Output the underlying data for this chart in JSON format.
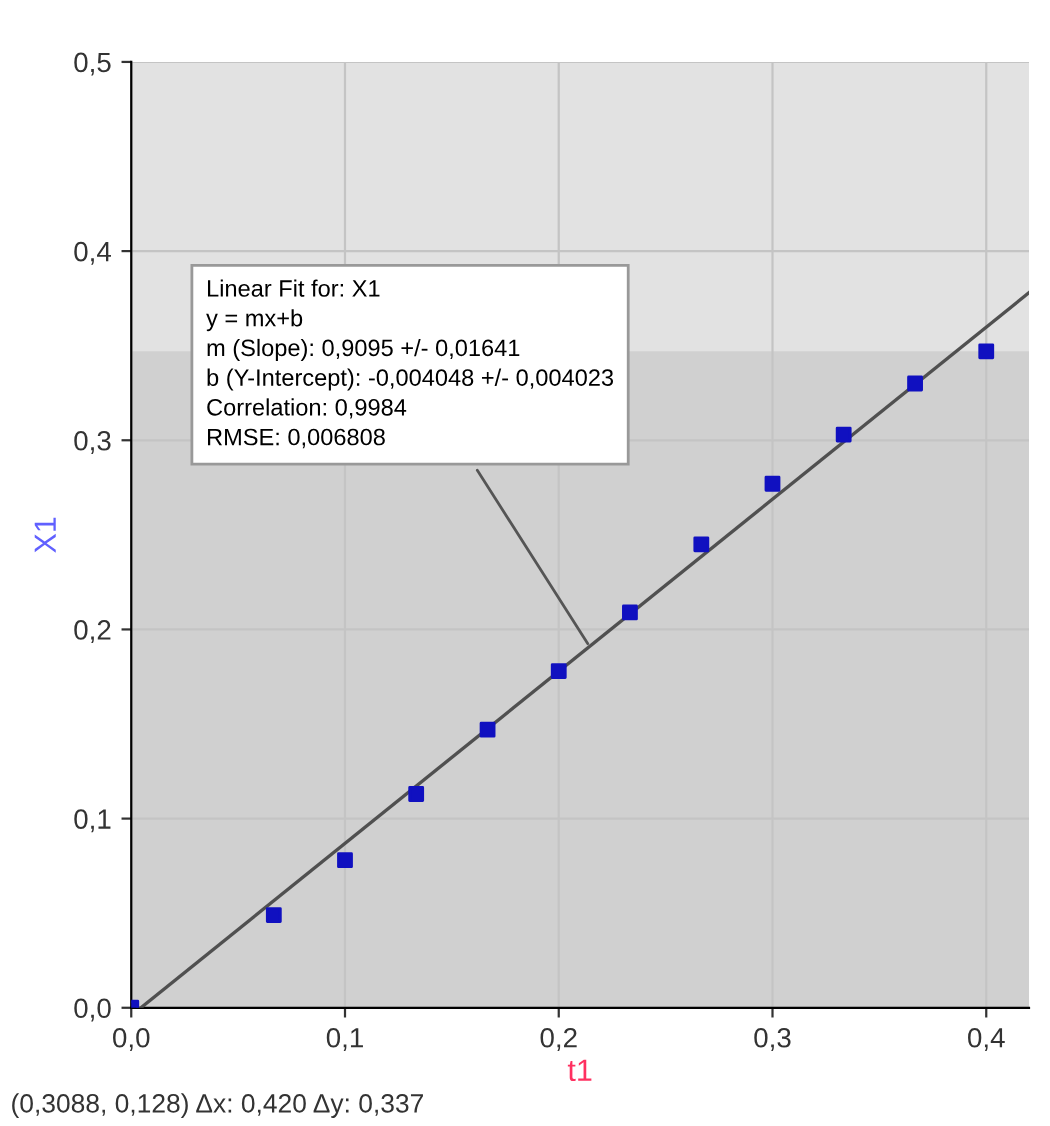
{
  "chart_data": {
    "type": "scatter",
    "xlabel": "t1",
    "ylabel": "X1",
    "series": [
      {
        "color": "#1010c0",
        "marker": "square",
        "x": [
          0,
          0.0667,
          0.1,
          0.1333,
          0.1667,
          0.2,
          0.2333,
          0.2667,
          0.3,
          0.3333,
          0.3667,
          0.4
        ],
        "values": [
          0,
          0.049,
          0.078,
          0.113,
          0.147,
          0.178,
          0.209,
          0.245,
          0.277,
          0.303,
          0.33,
          0.347
        ]
      },
      {
        "type": "line",
        "color": "#505050",
        "marker": "none",
        "x": [
          0.0045,
          0.42
        ],
        "values": [
          0,
          0.378
        ]
      }
    ],
    "xlim": [
      0,
      0.42
    ],
    "ylim": [
      0,
      0.5
    ],
    "xticks": [
      {
        "value": 0,
        "label": "0,0"
      },
      {
        "value": 0.1,
        "label": "0,1"
      },
      {
        "value": 0.2,
        "label": "0,2"
      },
      {
        "value": 0.3,
        "label": "0,3"
      },
      {
        "value": 0.4,
        "label": "0,4"
      }
    ],
    "yticks": [
      {
        "value": 0,
        "label": "0,0"
      },
      {
        "value": 0.1,
        "label": "0,1"
      },
      {
        "value": 0.2,
        "label": "0,2"
      },
      {
        "value": 0.3,
        "label": "0,3"
      },
      {
        "value": 0.4,
        "label": "0,4"
      },
      {
        "value": 0.5,
        "label": "0,5"
      }
    ],
    "bands": [
      {
        "axis": "y",
        "from": 0,
        "to": 0.347,
        "color": "#d0d0d0"
      }
    ],
    "grid": true,
    "annotations": [
      {
        "text": "Linear Fit for: X1\ny = mx+b\nm (Slope): 0,9095 +/- 0,01641\nb (Y-Intercept): -0,004048 +/- 0,004023\nCorrelation: 0,9984\nRMSE: 0,006808",
        "x": 0.215,
        "y": 0.19
      },
      "(0,3088, 0,128) Δx: 0,420 Δy: 0,337"
    ]
  }
}
